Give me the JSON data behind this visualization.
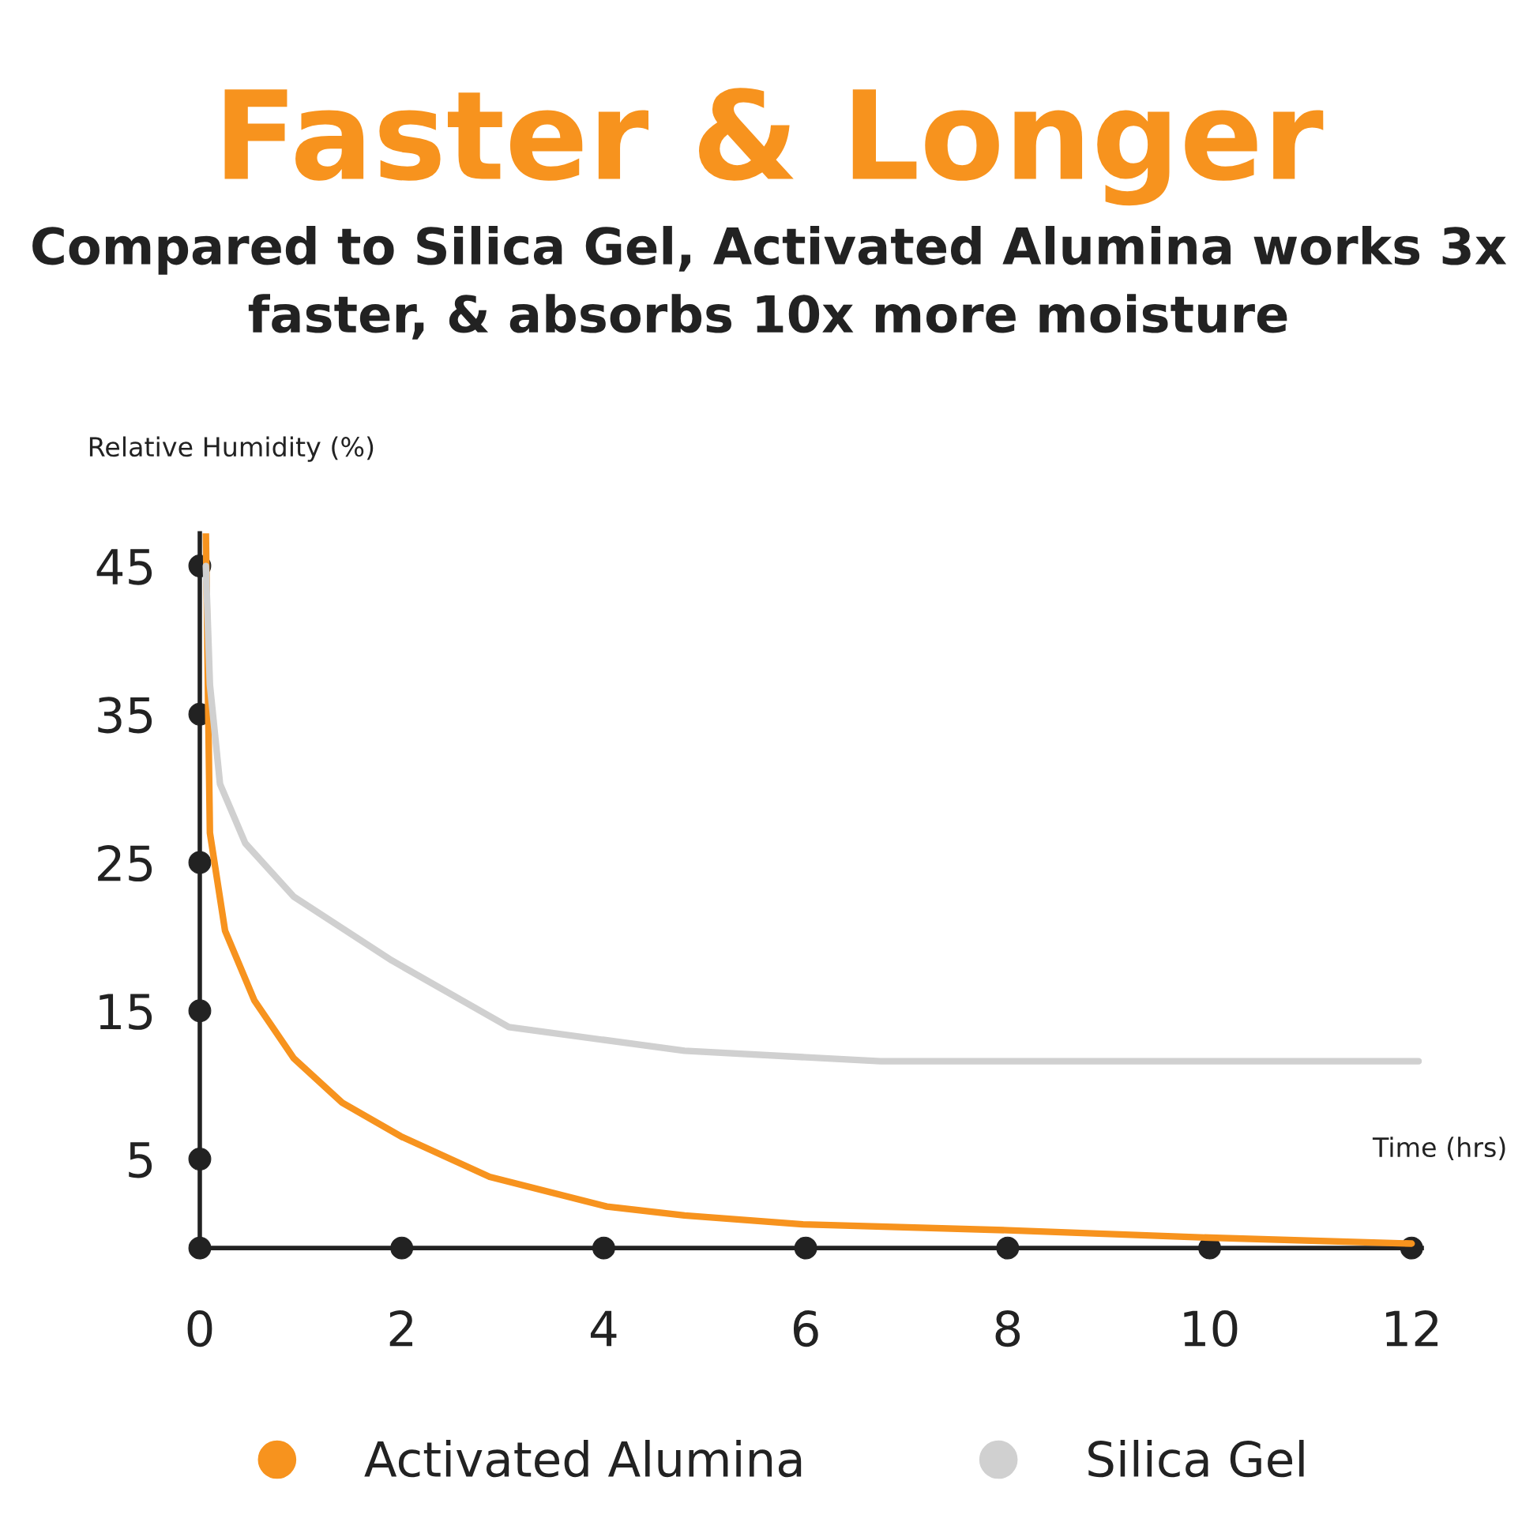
{
  "chart_data": {
    "type": "line",
    "title": "Faster & Longer",
    "subtitle": "Compared to Silica Gel, Activated Alumina works 3x faster, & absorbs 10x more moisture",
    "xlabel": "Time (hrs)",
    "ylabel": "Relative Humidity (%)",
    "xlim": [
      0,
      12.1
    ],
    "xticks": [
      0,
      2,
      4,
      6,
      8,
      10,
      12
    ],
    "ylim": [
      -1,
      47.2
    ],
    "yticks": [
      5,
      15,
      25,
      35,
      45
    ],
    "grid": false,
    "legend": "bottom",
    "marker": "none",
    "line_style": "solid",
    "series": [
      {
        "name": "Activated Alumina",
        "color": "#f7931e",
        "x": [
          0.06,
          0.08,
          0.1,
          0.25,
          0.54,
          0.93,
          1.41,
          2,
          2.87,
          4.03,
          4.8,
          5.97,
          8,
          10,
          12
        ],
        "values": [
          47.2,
          36.9,
          27,
          20.4,
          15.7,
          11.8,
          8.8,
          6.5,
          3.8,
          1.8,
          1.2,
          0.6,
          0.2,
          -0.3,
          -0.7
        ]
      },
      {
        "name": "Silica Gel",
        "color": "#d0d0d0",
        "x": [
          0.06,
          0.1,
          0.2,
          0.45,
          0.93,
          1.9,
          3.06,
          4.8,
          6.74,
          8.68,
          12.07
        ],
        "values": [
          45,
          37,
          30.3,
          26.3,
          22.7,
          18.4,
          13.9,
          12.3,
          11.6,
          11.6,
          11.6
        ]
      }
    ]
  }
}
